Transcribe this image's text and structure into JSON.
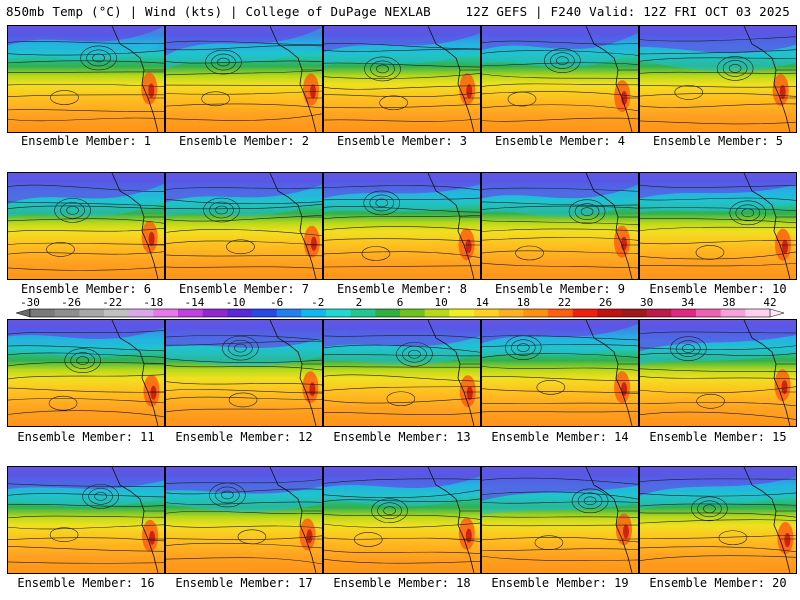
{
  "header": {
    "left": "850mb Temp (°C) | Wind (kts) | College of DuPage NEXLAB",
    "right": "12Z GEFS | F240 Valid: 12Z FRI OCT 03 2025"
  },
  "members": [
    "Ensemble Member: 1",
    "Ensemble Member: 2",
    "Ensemble Member: 3",
    "Ensemble Member: 4",
    "Ensemble Member: 5",
    "Ensemble Member: 6",
    "Ensemble Member: 7",
    "Ensemble Member: 8",
    "Ensemble Member: 9",
    "Ensemble Member: 10",
    "Ensemble Member: 11",
    "Ensemble Member: 12",
    "Ensemble Member: 13",
    "Ensemble Member: 14",
    "Ensemble Member: 15",
    "Ensemble Member: 16",
    "Ensemble Member: 17",
    "Ensemble Member: 18",
    "Ensemble Member: 19",
    "Ensemble Member: 20"
  ],
  "colorbar": {
    "labels": [
      "-30",
      "-26",
      "-22",
      "-18",
      "-14",
      "-10",
      "-6",
      "-2",
      "2",
      "6",
      "10",
      "14",
      "18",
      "22",
      "26",
      "30",
      "34",
      "38",
      "42"
    ],
    "colors": [
      "#7a7a7a",
      "#8e8e8e",
      "#a8a8a8",
      "#c0c0c0",
      "#d8a8e8",
      "#e878e8",
      "#c040e0",
      "#9028d0",
      "#5a28d8",
      "#2848e8",
      "#2080f0",
      "#10b8f0",
      "#20d8d0",
      "#20c890",
      "#30b040",
      "#70c020",
      "#b8d818",
      "#f0f020",
      "#ffd020",
      "#ffb020",
      "#ff9010",
      "#ff6010",
      "#f02010",
      "#c01010",
      "#a01818",
      "#c01848",
      "#e02880",
      "#f060b0",
      "#f8a0d8",
      "#ffd0f0"
    ]
  }
}
